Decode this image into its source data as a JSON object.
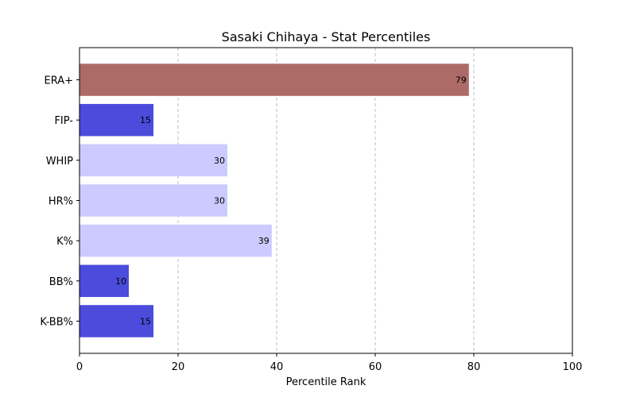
{
  "chart_data": {
    "type": "bar",
    "orientation": "horizontal",
    "title": "Sasaki Chihaya - Stat Percentiles",
    "xlabel": "Percentile Rank",
    "ylabel": "",
    "xlim": [
      0,
      100
    ],
    "xticks": [
      0,
      20,
      40,
      60,
      80,
      100
    ],
    "grid": "x-dashed",
    "categories": [
      "ERA+",
      "FIP-",
      "WHIP",
      "HR%",
      "K%",
      "BB%",
      "K-BB%"
    ],
    "values": [
      79,
      15,
      30,
      30,
      39,
      10,
      15
    ],
    "colors": [
      "#ad6b68",
      "#4b4bdc",
      "#cbcbff",
      "#cbcbff",
      "#cbcbff",
      "#4b4bdc",
      "#4b4bdc"
    ]
  }
}
